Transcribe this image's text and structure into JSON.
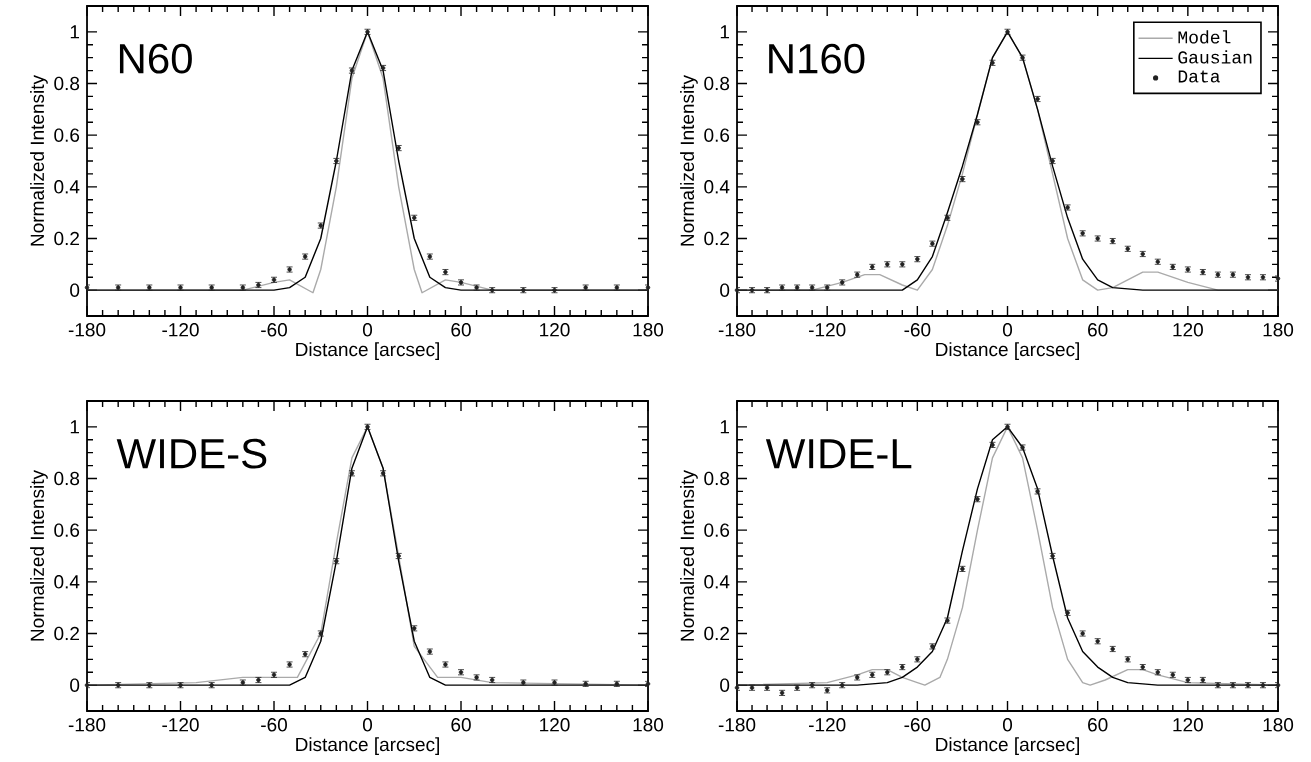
{
  "chart_data": [
    {
      "type": "line",
      "annotations": [
        "N60"
      ],
      "xlabel": "Distance [arcsec]",
      "ylabel": "Normalized Intensity",
      "xlim": [
        -180,
        180
      ],
      "ylim": [
        -0.1,
        1.1
      ],
      "xticks": [
        -180,
        -120,
        -60,
        0,
        60,
        120,
        180
      ],
      "yticks": [
        0,
        0.2,
        0.4,
        0.6,
        0.8,
        1
      ],
      "legend": false,
      "series": [
        {
          "color": "#aaaaaa",
          "x": [
            -180,
            -80,
            -60,
            -50,
            -35,
            -30,
            -20,
            -10,
            0,
            10,
            20,
            30,
            35,
            50,
            60,
            80,
            180
          ],
          "values": [
            0,
            0,
            0.03,
            0.04,
            -0.01,
            0.08,
            0.4,
            0.82,
            1,
            0.82,
            0.4,
            0.08,
            -0.01,
            0.04,
            0.03,
            0,
            0
          ]
        },
        {
          "color": "#000000",
          "x": [
            -180,
            -120,
            -80,
            -60,
            -50,
            -40,
            -30,
            -20,
            -10,
            0,
            10,
            20,
            30,
            40,
            50,
            60,
            80,
            120,
            180
          ],
          "values": [
            0,
            0,
            0,
            0,
            0.01,
            0.05,
            0.2,
            0.5,
            0.85,
            1,
            0.85,
            0.5,
            0.2,
            0.05,
            0.01,
            0,
            0,
            0,
            0
          ]
        },
        {
          "type": "scatter",
          "color": "#222222",
          "x": [
            -180,
            -160,
            -140,
            -120,
            -100,
            -80,
            -70,
            -60,
            -50,
            -40,
            -30,
            -20,
            -10,
            0,
            10,
            20,
            30,
            40,
            50,
            60,
            70,
            80,
            100,
            120,
            140,
            160,
            180
          ],
          "values": [
            0.01,
            0.01,
            0.01,
            0.01,
            0.01,
            0.01,
            0.02,
            0.04,
            0.08,
            0.13,
            0.25,
            0.5,
            0.85,
            1.0,
            0.86,
            0.55,
            0.28,
            0.13,
            0.07,
            0.03,
            0.01,
            0.0,
            0.0,
            0.0,
            0.01,
            0.01,
            0.01
          ],
          "errors": [
            0.01,
            0.01,
            0.01,
            0.01,
            0.01,
            0.01,
            0.01,
            0.01,
            0.01,
            0.01,
            0.01,
            0.01,
            0.01,
            0.01,
            0.01,
            0.01,
            0.01,
            0.01,
            0.01,
            0.01,
            0.01,
            0.01,
            0.01,
            0.01,
            0.01,
            0.01,
            0.01
          ]
        }
      ]
    },
    {
      "type": "line",
      "annotations": [
        "N160"
      ],
      "xlabel": "Distance [arcsec]",
      "ylabel": "Normalized Intensity",
      "xlim": [
        -180,
        180
      ],
      "ylim": [
        -0.1,
        1.1
      ],
      "xticks": [
        -180,
        -120,
        -60,
        0,
        60,
        120,
        180
      ],
      "yticks": [
        0,
        0.2,
        0.4,
        0.6,
        0.8,
        1
      ],
      "legend": "top right",
      "series": [
        {
          "name": "Model",
          "color": "#aaaaaa",
          "x": [
            -180,
            -130,
            -110,
            -95,
            -85,
            -70,
            -60,
            -50,
            -40,
            -30,
            -20,
            -10,
            0,
            10,
            20,
            30,
            40,
            50,
            60,
            70,
            90,
            100,
            120,
            140,
            180
          ],
          "values": [
            0,
            0,
            0.03,
            0.06,
            0.06,
            0.02,
            0,
            0.08,
            0.25,
            0.45,
            0.68,
            0.9,
            1,
            0.9,
            0.7,
            0.45,
            0.2,
            0.04,
            0,
            0.01,
            0.07,
            0.07,
            0.03,
            0,
            0
          ]
        },
        {
          "name": "Gausian",
          "color": "#000000",
          "x": [
            -180,
            -90,
            -70,
            -60,
            -50,
            -40,
            -30,
            -20,
            -10,
            0,
            10,
            20,
            30,
            40,
            50,
            60,
            70,
            90,
            180
          ],
          "values": [
            0,
            0,
            0,
            0.04,
            0.13,
            0.3,
            0.48,
            0.68,
            0.9,
            1,
            0.9,
            0.7,
            0.48,
            0.28,
            0.12,
            0.04,
            0.01,
            0,
            0
          ]
        },
        {
          "type": "scatter",
          "name": "Data",
          "color": "#222222",
          "x": [
            -180,
            -170,
            -160,
            -150,
            -140,
            -130,
            -120,
            -110,
            -100,
            -90,
            -80,
            -70,
            -60,
            -50,
            -40,
            -30,
            -20,
            -10,
            0,
            10,
            20,
            30,
            40,
            50,
            60,
            70,
            80,
            90,
            100,
            110,
            120,
            130,
            140,
            150,
            160,
            170,
            180
          ],
          "values": [
            0.0,
            0.0,
            0.0,
            0.01,
            0.01,
            0.01,
            0.01,
            0.03,
            0.06,
            0.09,
            0.1,
            0.1,
            0.12,
            0.18,
            0.28,
            0.43,
            0.65,
            0.88,
            1.0,
            0.9,
            0.74,
            0.5,
            0.32,
            0.22,
            0.2,
            0.19,
            0.16,
            0.14,
            0.11,
            0.09,
            0.08,
            0.07,
            0.06,
            0.06,
            0.05,
            0.05,
            0.045
          ],
          "errors": [
            0.01,
            0.01,
            0.01,
            0.01,
            0.01,
            0.01,
            0.01,
            0.01,
            0.01,
            0.01,
            0.01,
            0.01,
            0.01,
            0.01,
            0.01,
            0.01,
            0.01,
            0.01,
            0.01,
            0.01,
            0.01,
            0.01,
            0.01,
            0.01,
            0.01,
            0.01,
            0.01,
            0.01,
            0.01,
            0.01,
            0.01,
            0.01,
            0.01,
            0.01,
            0.01,
            0.01,
            0.01
          ]
        }
      ]
    },
    {
      "type": "line",
      "annotations": [
        "WIDE-S"
      ],
      "xlabel": "Distance [arcsec]",
      "ylabel": "Normalized Intensity",
      "xlim": [
        -180,
        180
      ],
      "ylim": [
        -0.1,
        1.1
      ],
      "xticks": [
        -180,
        -120,
        -60,
        0,
        60,
        120,
        180
      ],
      "yticks": [
        0,
        0.2,
        0.4,
        0.6,
        0.8,
        1
      ],
      "legend": false,
      "series": [
        {
          "color": "#aaaaaa",
          "x": [
            -180,
            -110,
            -80,
            -60,
            -45,
            -30,
            -20,
            -10,
            0,
            10,
            20,
            30,
            45,
            60,
            80,
            180
          ],
          "values": [
            0,
            0.01,
            0.03,
            0.03,
            0.03,
            0.2,
            0.55,
            0.88,
            1,
            0.84,
            0.5,
            0.15,
            0.03,
            0.03,
            0.01,
            0
          ]
        },
        {
          "color": "#000000",
          "x": [
            -180,
            -50,
            -40,
            -30,
            -20,
            -10,
            0,
            10,
            20,
            30,
            40,
            50,
            180
          ],
          "values": [
            0,
            0,
            0.03,
            0.17,
            0.48,
            0.84,
            1,
            0.84,
            0.48,
            0.17,
            0.03,
            0,
            0
          ]
        },
        {
          "type": "scatter",
          "color": "#222222",
          "x": [
            -180,
            -160,
            -140,
            -120,
            -100,
            -80,
            -70,
            -60,
            -50,
            -40,
            -30,
            -20,
            -10,
            0,
            10,
            20,
            30,
            40,
            50,
            60,
            70,
            80,
            100,
            120,
            140,
            160,
            180
          ],
          "values": [
            0,
            0,
            0,
            0,
            0,
            0.01,
            0.02,
            0.04,
            0.08,
            0.12,
            0.2,
            0.48,
            0.82,
            1,
            0.82,
            0.5,
            0.22,
            0.13,
            0.08,
            0.05,
            0.03,
            0.02,
            0.01,
            0.01,
            0.005,
            0.005,
            0.005
          ],
          "errors": [
            0.01,
            0.01,
            0.01,
            0.01,
            0.01,
            0.01,
            0.01,
            0.01,
            0.01,
            0.01,
            0.01,
            0.01,
            0.01,
            0.01,
            0.01,
            0.01,
            0.01,
            0.01,
            0.01,
            0.01,
            0.01,
            0.01,
            0.01,
            0.01,
            0.01,
            0.01,
            0.01
          ]
        }
      ]
    },
    {
      "type": "line",
      "annotations": [
        "WIDE-L"
      ],
      "xlabel": "Distance [arcsec]",
      "ylabel": "Normalized Intensity",
      "xlim": [
        -180,
        180
      ],
      "ylim": [
        -0.1,
        1.1
      ],
      "xticks": [
        -180,
        -120,
        -60,
        0,
        60,
        120,
        180
      ],
      "yticks": [
        0,
        0.2,
        0.4,
        0.6,
        0.8,
        1
      ],
      "legend": false,
      "series": [
        {
          "color": "#aaaaaa",
          "x": [
            -180,
            -120,
            -100,
            -90,
            -80,
            -70,
            -60,
            -55,
            -45,
            -40,
            -30,
            -20,
            -10,
            0,
            10,
            20,
            30,
            40,
            50,
            55,
            65,
            80,
            90,
            100,
            120,
            180
          ],
          "values": [
            0,
            0.01,
            0.04,
            0.06,
            0.06,
            0.03,
            0.01,
            0,
            0.03,
            0.1,
            0.3,
            0.6,
            0.88,
            1,
            0.88,
            0.6,
            0.3,
            0.1,
            0.01,
            0,
            0.02,
            0.06,
            0.06,
            0.04,
            0.01,
            0
          ]
        },
        {
          "color": "#000000",
          "x": [
            -180,
            -100,
            -80,
            -70,
            -60,
            -50,
            -40,
            -30,
            -20,
            -10,
            0,
            10,
            20,
            30,
            40,
            50,
            60,
            70,
            80,
            100,
            180
          ],
          "values": [
            0,
            0,
            0.01,
            0.03,
            0.07,
            0.13,
            0.26,
            0.52,
            0.76,
            0.95,
            1,
            0.92,
            0.76,
            0.5,
            0.26,
            0.13,
            0.07,
            0.03,
            0.01,
            0,
            0
          ]
        },
        {
          "type": "scatter",
          "color": "#222222",
          "x": [
            -180,
            -170,
            -160,
            -150,
            -140,
            -130,
            -120,
            -110,
            -100,
            -90,
            -80,
            -70,
            -60,
            -50,
            -40,
            -30,
            -20,
            -10,
            0,
            10,
            20,
            30,
            40,
            50,
            60,
            70,
            80,
            90,
            100,
            110,
            120,
            130,
            140,
            150,
            160,
            170,
            180
          ],
          "values": [
            -0.01,
            -0.01,
            -0.01,
            -0.03,
            -0.01,
            0.0,
            -0.02,
            0.0,
            0.03,
            0.04,
            0.05,
            0.07,
            0.1,
            0.15,
            0.25,
            0.45,
            0.72,
            0.93,
            1.0,
            0.92,
            0.75,
            0.5,
            0.28,
            0.2,
            0.17,
            0.14,
            0.1,
            0.07,
            0.05,
            0.04,
            0.02,
            0.02,
            0.0,
            0.0,
            0.0,
            0.0,
            0.0
          ],
          "errors": [
            0.01,
            0.01,
            0.01,
            0.01,
            0.01,
            0.01,
            0.01,
            0.01,
            0.01,
            0.01,
            0.01,
            0.01,
            0.01,
            0.01,
            0.01,
            0.01,
            0.01,
            0.01,
            0.01,
            0.01,
            0.01,
            0.01,
            0.01,
            0.01,
            0.01,
            0.01,
            0.01,
            0.01,
            0.01,
            0.01,
            0.01,
            0.01,
            0.01,
            0.01,
            0.01,
            0.01,
            0.01
          ]
        }
      ]
    }
  ]
}
